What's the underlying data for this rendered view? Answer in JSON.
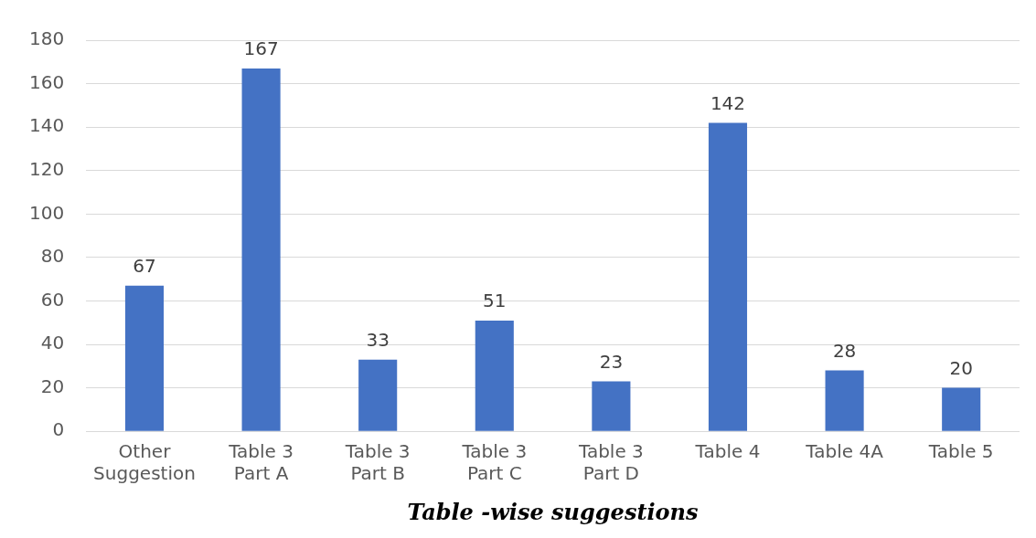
{
  "chart_data": {
    "type": "bar",
    "xlabel": "Table -wise suggestions",
    "categories": [
      "Other Suggestion",
      "Table 3 Part A",
      "Table 3 Part B",
      "Table 3 Part C",
      "Table 3 Part D",
      "Table 4",
      "Table 4A",
      "Table 5"
    ],
    "values": [
      67,
      167,
      33,
      51,
      23,
      142,
      28,
      20
    ],
    "color": "#4472c4",
    "ylim": [
      0,
      180
    ],
    "yticks": [
      0,
      20,
      40,
      60,
      80,
      100,
      120,
      140,
      160,
      180
    ],
    "grid": "y",
    "data_labels": true
  }
}
